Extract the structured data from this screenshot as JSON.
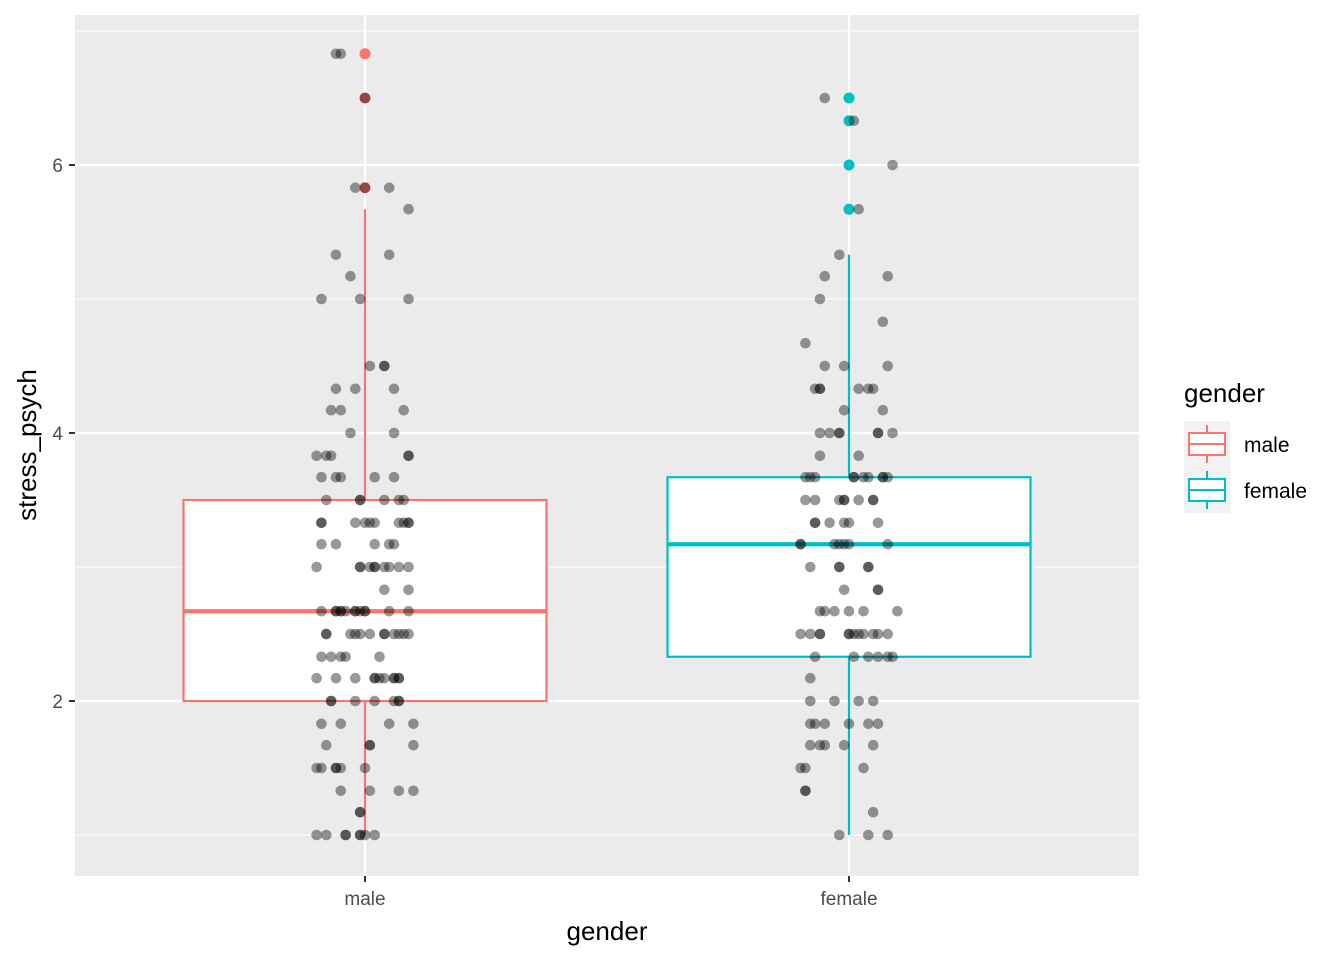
{
  "chart_data": {
    "type": "boxplot",
    "title": "",
    "xlabel": "gender",
    "ylabel": "stress_psych",
    "ylim": [
      0.7,
      7.12
    ],
    "yticks": [
      2,
      4,
      6
    ],
    "ytick_labels": [
      "2",
      "4",
      "6"
    ],
    "categories": [
      "male",
      "female"
    ],
    "grid": true,
    "legend": {
      "title": "gender",
      "position": "right",
      "entries": [
        "male",
        "female"
      ]
    },
    "colors": {
      "male": "#F8766D",
      "female": "#00BFC4",
      "points": "#000000",
      "panel": "#EBEBEB",
      "grid": "#FFFFFF"
    },
    "boxes": [
      {
        "name": "male",
        "lower_whisker": 1.0,
        "q1": 2.0,
        "median": 2.67,
        "q3": 3.5,
        "upper_whisker": 5.67,
        "outliers": [
          6.83,
          6.5,
          5.83
        ]
      },
      {
        "name": "female",
        "lower_whisker": 1.0,
        "q1": 2.33,
        "median": 3.17,
        "q3": 3.67,
        "upper_whisker": 5.33,
        "outliers": [
          6.5,
          6.33,
          6.0,
          5.67
        ]
      }
    ],
    "jitter_points": {
      "male": [
        [
          6.83,
          [
            -0.06,
            -0.05
          ]
        ],
        [
          6.5,
          [
            0
          ]
        ],
        [
          5.83,
          [
            -0.02,
            0,
            0.05
          ]
        ],
        [
          5.67,
          [
            0.09
          ]
        ],
        [
          5.33,
          [
            -0.06,
            0.05
          ]
        ],
        [
          5.17,
          [
            -0.03
          ]
        ],
        [
          5.0,
          [
            -0.09,
            -0.01,
            0.09
          ]
        ],
        [
          4.5,
          [
            0.01,
            0.04,
            0.04
          ]
        ],
        [
          4.33,
          [
            -0.06,
            -0.02,
            0.06
          ]
        ],
        [
          4.17,
          [
            -0.07,
            -0.05,
            0.08
          ]
        ],
        [
          4.0,
          [
            -0.03,
            0.06
          ]
        ],
        [
          3.83,
          [
            -0.1,
            -0.08,
            -0.07,
            0.09,
            0.09
          ]
        ],
        [
          3.67,
          [
            -0.09,
            -0.06,
            -0.05,
            0.02,
            0.06
          ]
        ],
        [
          3.5,
          [
            -0.08,
            -0.01,
            -0.01,
            0.04,
            0.07,
            0.08
          ]
        ],
        [
          3.33,
          [
            -0.09,
            -0.09,
            -0.02,
            0,
            0.01,
            0.02,
            0.07,
            0.08,
            0.09,
            0.09
          ]
        ],
        [
          3.17,
          [
            -0.09,
            -0.06,
            0.02,
            0.05,
            0.06
          ]
        ],
        [
          3.0,
          [
            -0.1,
            -0.01,
            -0.01,
            0.01,
            0.02,
            0.02,
            0.04,
            0.05,
            0.07,
            0.09
          ]
        ],
        [
          2.83,
          [
            0.04,
            0.09
          ]
        ],
        [
          2.67,
          [
            -0.09,
            -0.06,
            -0.06,
            -0.05,
            -0.05,
            -0.04,
            -0.02,
            -0.02,
            -0.01,
            0,
            0,
            0.05,
            0.09
          ]
        ],
        [
          2.5,
          [
            -0.08,
            -0.08,
            -0.03,
            -0.02,
            -0.01,
            0.01,
            0.04,
            0.04,
            0.06,
            0.07,
            0.08,
            0.09
          ]
        ],
        [
          2.33,
          [
            -0.09,
            -0.07,
            -0.05,
            -0.04,
            0.03
          ]
        ],
        [
          2.17,
          [
            -0.1,
            -0.06,
            -0.02,
            0.02,
            0.02,
            0.03,
            0.04,
            0.06,
            0.06,
            0.07,
            0.07
          ]
        ],
        [
          2.0,
          [
            -0.07,
            -0.07,
            -0.02,
            0.02,
            0.06,
            0.07,
            0.07
          ]
        ],
        [
          1.83,
          [
            -0.09,
            -0.05,
            0.05,
            0.1
          ]
        ],
        [
          1.67,
          [
            -0.08,
            0.01,
            0.01,
            0.1
          ]
        ],
        [
          1.5,
          [
            -0.1,
            -0.09,
            -0.06,
            -0.06,
            -0.05,
            0
          ]
        ],
        [
          1.33,
          [
            -0.05,
            0.01,
            0.07,
            0.1
          ]
        ],
        [
          1.17,
          [
            -0.01,
            -0.01
          ]
        ],
        [
          1.0,
          [
            -0.1,
            -0.08,
            -0.04,
            -0.04,
            -0.01,
            -0.01,
            0,
            0.02
          ]
        ]
      ],
      "female": [
        [
          6.5,
          [
            -0.05
          ]
        ],
        [
          6.33,
          [
            0.01
          ]
        ],
        [
          6.0,
          [
            0.09
          ]
        ],
        [
          5.67,
          [
            0.02
          ]
        ],
        [
          5.33,
          [
            -0.02
          ]
        ],
        [
          5.17,
          [
            -0.05,
            0.08
          ]
        ],
        [
          5.0,
          [
            -0.06
          ]
        ],
        [
          4.83,
          [
            0.07
          ]
        ],
        [
          4.67,
          [
            -0.09
          ]
        ],
        [
          4.5,
          [
            -0.05,
            -0.01,
            0.08
          ]
        ],
        [
          4.33,
          [
            -0.07,
            -0.06,
            -0.06,
            0.02,
            0.04,
            0.05
          ]
        ],
        [
          4.17,
          [
            -0.01,
            0.07
          ]
        ],
        [
          4.0,
          [
            -0.06,
            -0.04,
            -0.02,
            -0.02,
            0.06,
            0.06,
            0.09
          ]
        ],
        [
          3.83,
          [
            -0.06,
            0.02
          ]
        ],
        [
          3.67,
          [
            -0.09,
            -0.08,
            -0.07,
            0.01,
            0.01,
            0.03,
            0.04,
            0.07,
            0.07,
            0.08
          ]
        ],
        [
          3.5,
          [
            -0.09,
            -0.07,
            -0.02,
            -0.01,
            -0.01,
            0.02,
            0.05,
            0.05
          ]
        ],
        [
          3.33,
          [
            -0.07,
            -0.07,
            -0.04,
            -0.01,
            0,
            0.06
          ]
        ],
        [
          3.17,
          [
            -0.1,
            -0.1,
            -0.03,
            -0.02,
            -0.01,
            0,
            0.08
          ]
        ],
        [
          3.0,
          [
            -0.08,
            -0.02,
            -0.02,
            0.04,
            0.04
          ]
        ],
        [
          2.83,
          [
            -0.01,
            0.06,
            0.06
          ]
        ],
        [
          2.67,
          [
            -0.06,
            -0.05,
            -0.03,
            0,
            0.03,
            0.1
          ]
        ],
        [
          2.5,
          [
            -0.1,
            -0.08,
            -0.06,
            -0.06,
            0,
            0,
            0.01,
            0.02,
            0.03,
            0.05,
            0.06,
            0.08
          ]
        ],
        [
          2.33,
          [
            -0.07,
            0.01,
            0.04,
            0.06,
            0.08,
            0.09
          ]
        ],
        [
          2.17,
          [
            -0.08
          ]
        ],
        [
          2.0,
          [
            -0.08,
            -0.03,
            0.02,
            0.05
          ]
        ],
        [
          1.83,
          [
            -0.08,
            -0.07,
            -0.05,
            0,
            0.04,
            0.06
          ]
        ],
        [
          1.67,
          [
            -0.08,
            -0.06,
            -0.05,
            -0.01,
            0.05
          ]
        ],
        [
          1.5,
          [
            -0.1,
            -0.09,
            0.03
          ]
        ],
        [
          1.33,
          [
            -0.09,
            -0.09
          ]
        ],
        [
          1.17,
          [
            0.05
          ]
        ],
        [
          1.0,
          [
            -0.02,
            0.04,
            0.08
          ]
        ]
      ]
    }
  }
}
